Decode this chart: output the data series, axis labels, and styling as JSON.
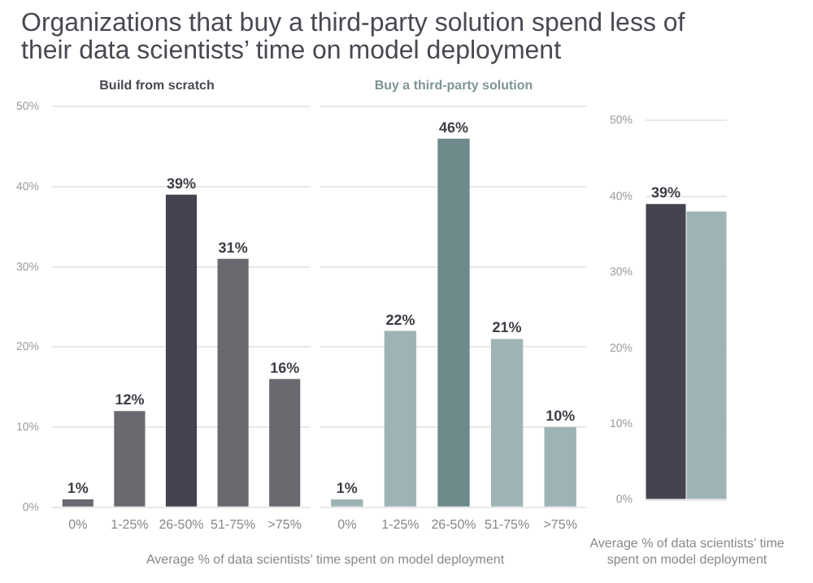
{
  "chart_data": [
    {
      "type": "bar",
      "title": "Organizations that buy a third-party solution spend less of their data scientists’ time on model deployment",
      "subtitle": "Build from scratch",
      "xlabel": "Average % of data scientists’ time spent on model deployment",
      "categories": [
        "0%",
        "1-25%",
        "26-50%",
        "51-75%",
        ">75%"
      ],
      "values": [
        1,
        12,
        39,
        31,
        16
      ],
      "colors": [
        "#6b6870",
        "#6b6870",
        "#45434f",
        "#6b6870",
        "#6b6870"
      ],
      "value_labels": [
        "1%",
        "12%",
        "39%",
        "31%",
        "16%"
      ],
      "ylim": [
        0,
        50
      ],
      "yticks": [
        {
          "value": 0,
          "label": "0%"
        },
        {
          "value": 10,
          "label": "10%"
        },
        {
          "value": 20,
          "label": "20%"
        },
        {
          "value": 30,
          "label": "30%"
        },
        {
          "value": 40,
          "label": "40%"
        },
        {
          "value": 50,
          "label": "50%"
        }
      ],
      "grid": "y"
    },
    {
      "type": "bar",
      "subtitle": "Buy a third-party solution",
      "categories": [
        "0%",
        "1-25%",
        "26-50%",
        "51-75%",
        ">75%"
      ],
      "values": [
        1,
        22,
        46,
        21,
        10
      ],
      "colors": [
        "#9fb3b5",
        "#9fb3b5",
        "#6e8a8a",
        "#9fb3b5",
        "#9fb3b5"
      ],
      "value_labels": [
        "1%",
        "22%",
        "46%",
        "21%",
        "10%"
      ],
      "ylim": [
        0,
        50
      ],
      "yticks": [
        0,
        10,
        20,
        30,
        40,
        50
      ],
      "grid": "y",
      "tick_labels": "x"
    },
    {
      "type": "bar",
      "xlabel": "Average % of data scientists’ time spent on model deployment",
      "categories": [
        null,
        null
      ],
      "values": [
        39,
        38
      ],
      "colors": [
        "#45434f",
        "#9fb3b5"
      ],
      "value_labels": [
        "39%",
        null
      ],
      "ylim": [
        0,
        50
      ],
      "yticks": [
        {
          "value": 0,
          "label": "0%"
        },
        {
          "value": 10,
          "label": "10%"
        },
        {
          "value": 20,
          "label": "20%"
        },
        {
          "value": 30,
          "label": "30%"
        },
        {
          "value": 40,
          "label": "40%"
        },
        {
          "value": 50,
          "label": "50%"
        }
      ],
      "grid": "y",
      "tick_labels": "y"
    }
  ]
}
